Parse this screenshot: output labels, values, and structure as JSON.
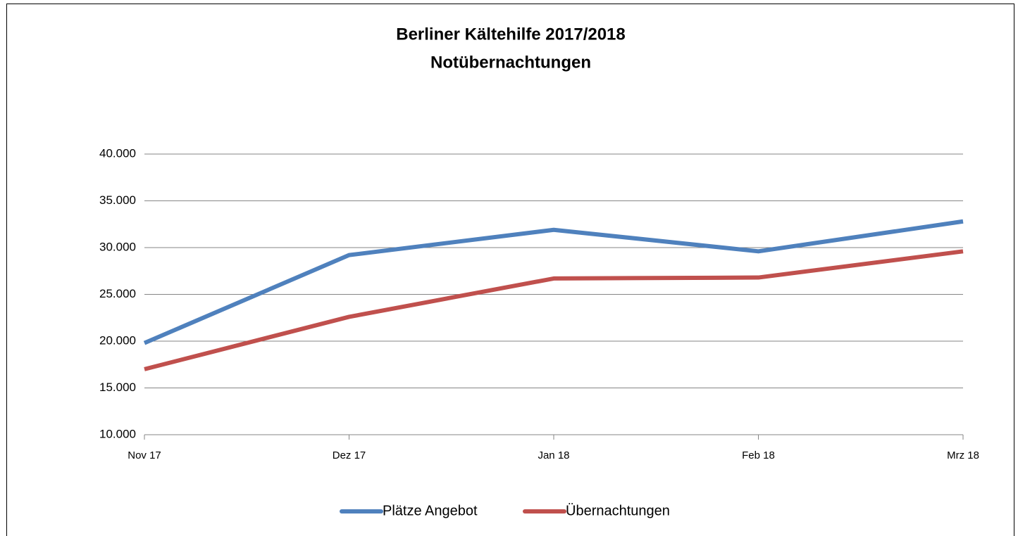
{
  "chart_data": {
    "type": "line",
    "title": "Berliner Kältehilfe 2017/2018",
    "subtitle": "Notübernachtungen",
    "categories": [
      "Nov 17",
      "Dez 17",
      "Jan 18",
      "Feb 18",
      "Mrz 18"
    ],
    "series": [
      {
        "name": "Plätze Angebot",
        "color": "#4f81bd",
        "values": [
          19800,
          29200,
          31900,
          29600,
          32800
        ]
      },
      {
        "name": "Übernachtungen",
        "color": "#c0504d",
        "values": [
          17000,
          22600,
          26700,
          26800,
          29600
        ]
      }
    ],
    "ylim": [
      10000,
      40000
    ],
    "yticks": [
      {
        "value": 10000,
        "label": "10.000"
      },
      {
        "value": 15000,
        "label": "15.000"
      },
      {
        "value": 20000,
        "label": "20.000"
      },
      {
        "value": 25000,
        "label": "25.000"
      },
      {
        "value": 30000,
        "label": "30.000"
      },
      {
        "value": 35000,
        "label": "35.000"
      },
      {
        "value": 40000,
        "label": "40.000"
      }
    ],
    "grid": true,
    "legend": "bottom"
  }
}
